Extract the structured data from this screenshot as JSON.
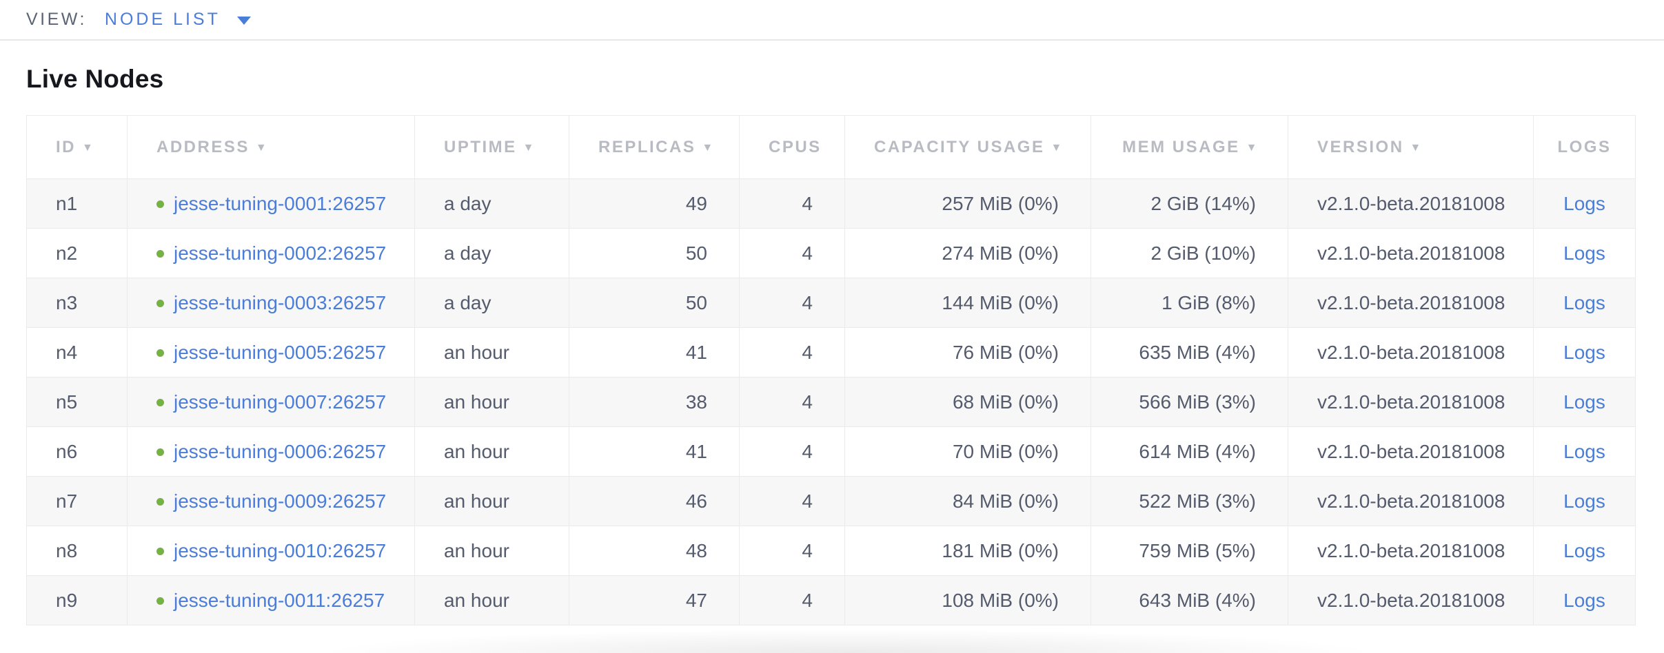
{
  "view_bar": {
    "label": "VIEW:",
    "selected": "NODE LIST"
  },
  "page": {
    "title": "Live Nodes"
  },
  "colors": {
    "link_blue": "#4a7dd9",
    "status_green": "#76b243",
    "header_gray": "#b9bbc2",
    "cell_text": "#545b6d",
    "zebra_row": "#f7f7f7",
    "border": "#ebebeb"
  },
  "table": {
    "columns": [
      {
        "key": "id",
        "label": "ID",
        "sortable": true
      },
      {
        "key": "address",
        "label": "ADDRESS",
        "sortable": true
      },
      {
        "key": "uptime",
        "label": "UPTIME",
        "sortable": true
      },
      {
        "key": "replicas",
        "label": "REPLICAS",
        "sortable": true
      },
      {
        "key": "cpus",
        "label": "CPUS",
        "sortable": false
      },
      {
        "key": "capacity",
        "label": "CAPACITY USAGE",
        "sortable": true
      },
      {
        "key": "mem",
        "label": "MEM USAGE",
        "sortable": true
      },
      {
        "key": "version",
        "label": "VERSION",
        "sortable": true
      },
      {
        "key": "logs",
        "label": "LOGS",
        "sortable": false
      }
    ],
    "rows": [
      {
        "id": "n1",
        "status": "healthy",
        "address": "jesse-tuning-0001:26257",
        "uptime": "a day",
        "replicas": "49",
        "cpus": "4",
        "capacity": "257 MiB (0%)",
        "mem": "2 GiB (14%)",
        "version": "v2.1.0-beta.20181008",
        "logs": "Logs"
      },
      {
        "id": "n2",
        "status": "healthy",
        "address": "jesse-tuning-0002:26257",
        "uptime": "a day",
        "replicas": "50",
        "cpus": "4",
        "capacity": "274 MiB (0%)",
        "mem": "2 GiB (10%)",
        "version": "v2.1.0-beta.20181008",
        "logs": "Logs"
      },
      {
        "id": "n3",
        "status": "healthy",
        "address": "jesse-tuning-0003:26257",
        "uptime": "a day",
        "replicas": "50",
        "cpus": "4",
        "capacity": "144 MiB (0%)",
        "mem": "1 GiB (8%)",
        "version": "v2.1.0-beta.20181008",
        "logs": "Logs"
      },
      {
        "id": "n4",
        "status": "healthy",
        "address": "jesse-tuning-0005:26257",
        "uptime": "an hour",
        "replicas": "41",
        "cpus": "4",
        "capacity": "76 MiB (0%)",
        "mem": "635 MiB (4%)",
        "version": "v2.1.0-beta.20181008",
        "logs": "Logs"
      },
      {
        "id": "n5",
        "status": "healthy",
        "address": "jesse-tuning-0007:26257",
        "uptime": "an hour",
        "replicas": "38",
        "cpus": "4",
        "capacity": "68 MiB (0%)",
        "mem": "566 MiB (3%)",
        "version": "v2.1.0-beta.20181008",
        "logs": "Logs"
      },
      {
        "id": "n6",
        "status": "healthy",
        "address": "jesse-tuning-0006:26257",
        "uptime": "an hour",
        "replicas": "41",
        "cpus": "4",
        "capacity": "70 MiB (0%)",
        "mem": "614 MiB (4%)",
        "version": "v2.1.0-beta.20181008",
        "logs": "Logs"
      },
      {
        "id": "n7",
        "status": "healthy",
        "address": "jesse-tuning-0009:26257",
        "uptime": "an hour",
        "replicas": "46",
        "cpus": "4",
        "capacity": "84 MiB (0%)",
        "mem": "522 MiB (3%)",
        "version": "v2.1.0-beta.20181008",
        "logs": "Logs"
      },
      {
        "id": "n8",
        "status": "healthy",
        "address": "jesse-tuning-0010:26257",
        "uptime": "an hour",
        "replicas": "48",
        "cpus": "4",
        "capacity": "181 MiB (0%)",
        "mem": "759 MiB (5%)",
        "version": "v2.1.0-beta.20181008",
        "logs": "Logs"
      },
      {
        "id": "n9",
        "status": "healthy",
        "address": "jesse-tuning-0011:26257",
        "uptime": "an hour",
        "replicas": "47",
        "cpus": "4",
        "capacity": "108 MiB (0%)",
        "mem": "643 MiB (4%)",
        "version": "v2.1.0-beta.20181008",
        "logs": "Logs"
      }
    ]
  }
}
